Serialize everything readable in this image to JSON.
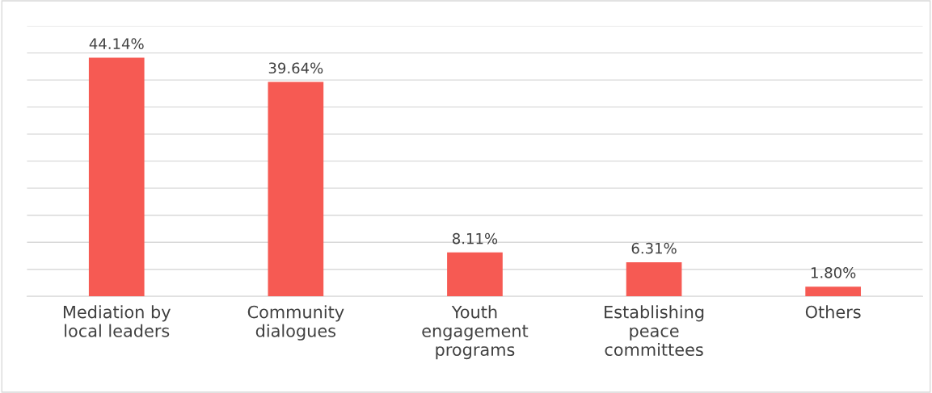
{
  "chart_data": {
    "type": "bar",
    "categories": [
      "Mediation by\nlocal leaders",
      "Community\ndialogues",
      "Youth\nengagement\nprograms",
      "Establishing\npeace\ncommittees",
      "Others"
    ],
    "values": [
      44.14,
      39.64,
      8.11,
      6.31,
      1.8
    ],
    "value_labels": [
      "44.14%",
      "39.64%",
      "8.11%",
      "6.31%",
      "1.80%"
    ],
    "color": "#f65a53",
    "ylim": [
      0,
      50
    ],
    "yticks": [
      {
        "value": 0,
        "label": null
      },
      {
        "value": 5,
        "label": null
      },
      {
        "value": 10,
        "label": null
      },
      {
        "value": 15,
        "label": null
      },
      {
        "value": 20,
        "label": null
      },
      {
        "value": 25,
        "label": null
      },
      {
        "value": 30,
        "label": null
      },
      {
        "value": 35,
        "label": null
      },
      {
        "value": 40,
        "label": null
      },
      {
        "value": 45,
        "label": null
      },
      {
        "value": 50,
        "label": null
      }
    ],
    "grid": "y",
    "tick_labels": "x"
  }
}
